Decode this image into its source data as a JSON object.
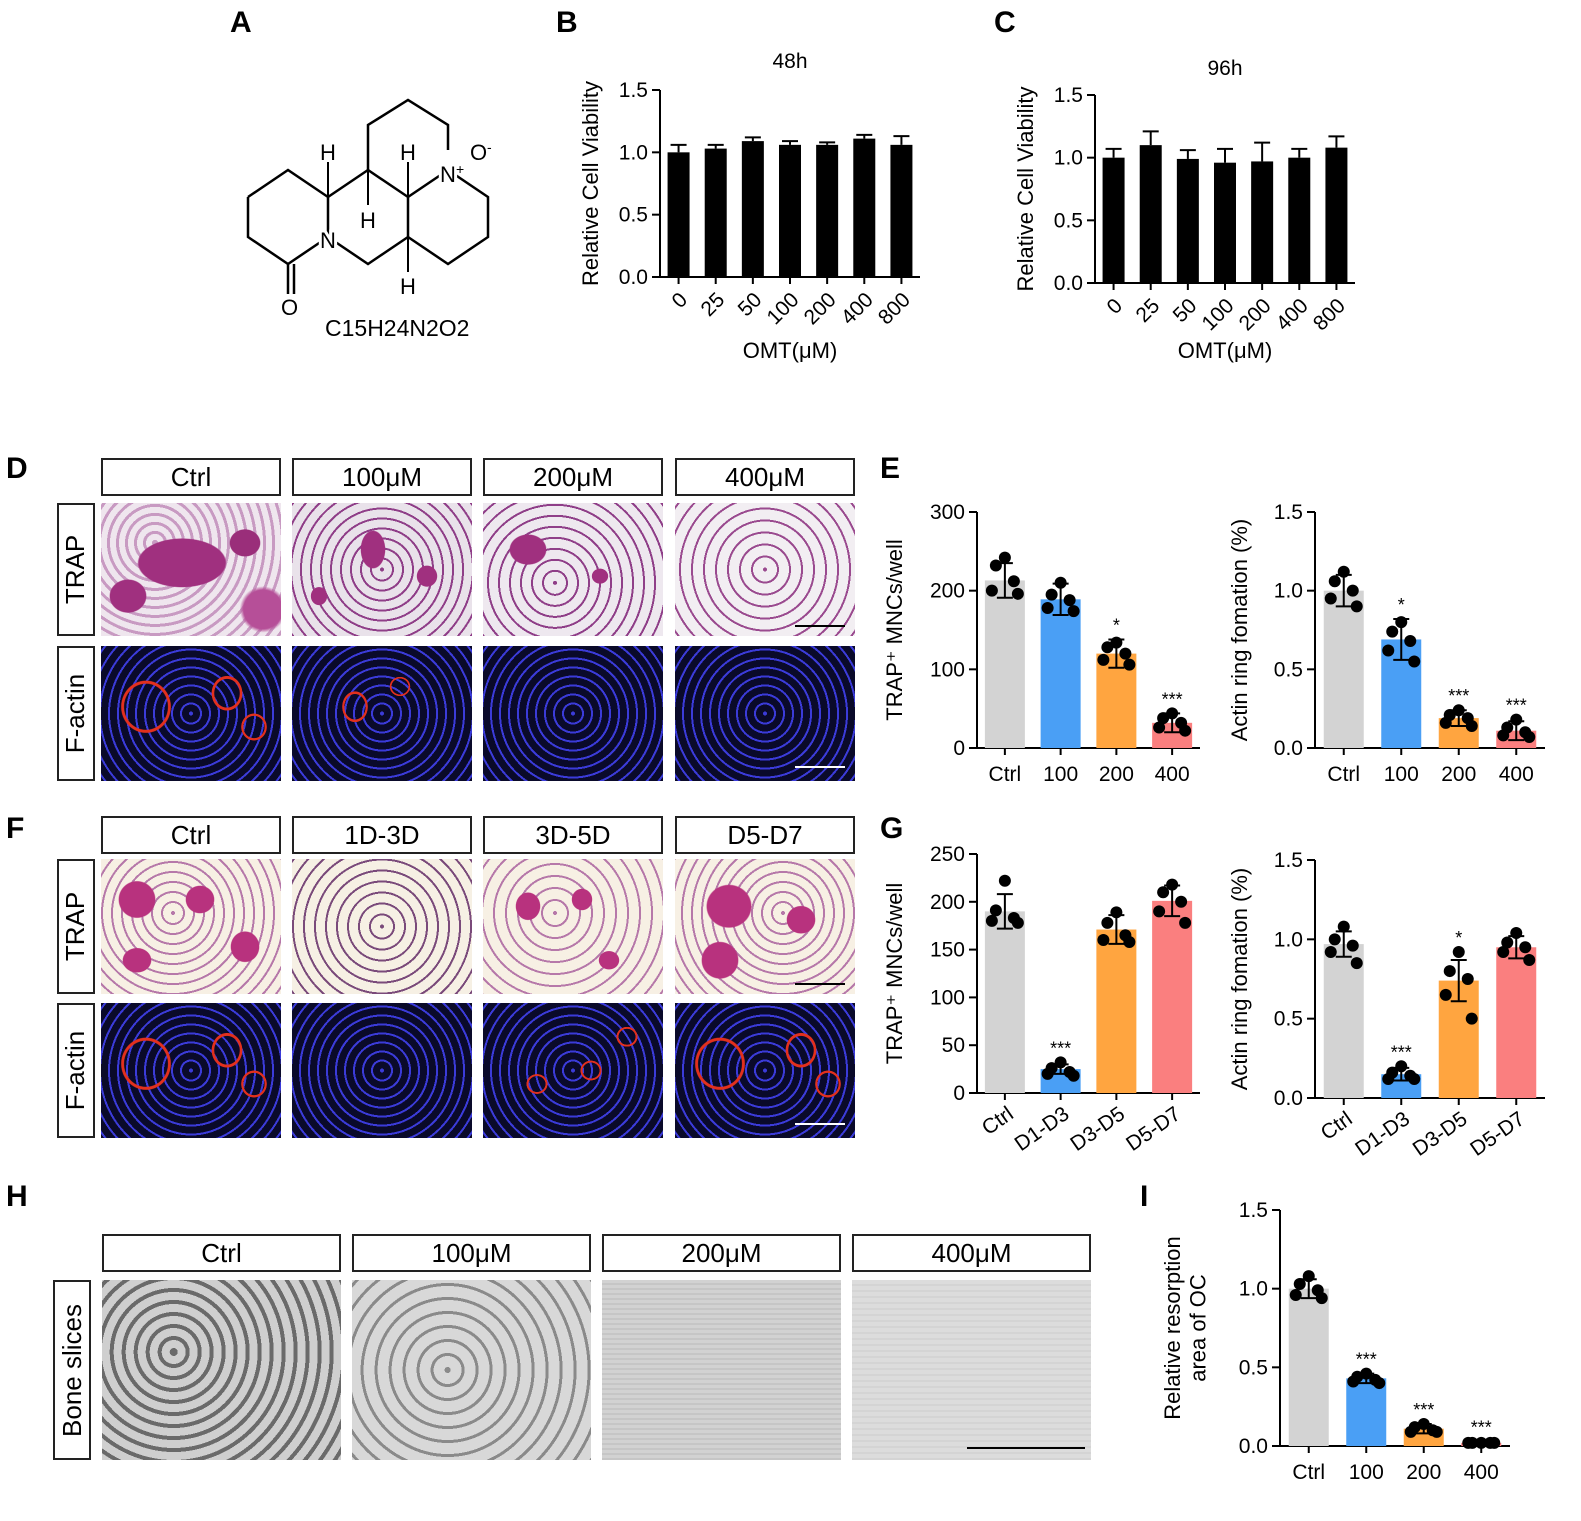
{
  "panel_letters": {
    "A": "A",
    "B": "B",
    "C": "C",
    "D": "D",
    "E": "E",
    "F": "F",
    "G": "G",
    "H": "H",
    "I": "I"
  },
  "structure": {
    "formula": "C15H24N2O2",
    "atoms": {
      "h1": "H",
      "h2": "H",
      "h3": "H",
      "h4": "H",
      "n1": "N",
      "n2": "N",
      "n_charge": "+",
      "o1": "O",
      "o2": "O",
      "o_charge": "-"
    }
  },
  "colors": {
    "black": "#000000",
    "grey": "#d3d3d3",
    "blue": "#4a9ff5",
    "orange": "#ffa540",
    "salmon": "#fa7f7f"
  },
  "panel_D": {
    "columns": [
      "Ctrl",
      "100μM",
      "200μM",
      "400μM"
    ],
    "rows": [
      "TRAP",
      "F-actin"
    ]
  },
  "panel_F": {
    "columns": [
      "Ctrl",
      "1D-3D",
      "3D-5D",
      "D5-D7"
    ],
    "rows": [
      "TRAP",
      "F-actin"
    ]
  },
  "panel_H": {
    "columns": [
      "Ctrl",
      "100μM",
      "200μM",
      "400μM"
    ],
    "rows": [
      "Bone slices"
    ]
  },
  "chart_data": [
    {
      "id": "B",
      "type": "bar",
      "title": "48h",
      "xlabel": "OMT(μM)",
      "ylabel": "Relative Cell Viability",
      "categories": [
        "0",
        "25",
        "50",
        "100",
        "200",
        "400",
        "800"
      ],
      "values": [
        1.0,
        1.03,
        1.09,
        1.06,
        1.06,
        1.11,
        1.06
      ],
      "errors": [
        0.06,
        0.03,
        0.03,
        0.03,
        0.02,
        0.03,
        0.07
      ],
      "ylim": [
        0,
        1.5
      ],
      "yticks": [
        "0.0",
        "0.5",
        "1.0",
        "1.5"
      ],
      "color": "#000000"
    },
    {
      "id": "C",
      "type": "bar",
      "title": "96h",
      "xlabel": "OMT(μM)",
      "ylabel": "Relative Cell Viability",
      "categories": [
        "0",
        "25",
        "50",
        "100",
        "200",
        "400",
        "800"
      ],
      "values": [
        1.0,
        1.1,
        0.99,
        0.96,
        0.97,
        1.0,
        1.08
      ],
      "errors": [
        0.07,
        0.11,
        0.07,
        0.11,
        0.15,
        0.07,
        0.09
      ],
      "ylim": [
        0,
        1.5
      ],
      "yticks": [
        "0.0",
        "0.5",
        "1.0",
        "1.5"
      ],
      "color": "#000000"
    },
    {
      "id": "E1",
      "type": "bar",
      "title": "",
      "xlabel": "",
      "ylabel": "TRAP⁺ MNCs/well",
      "categories": [
        "Ctrl",
        "100",
        "200",
        "400"
      ],
      "values": [
        213,
        189,
        120,
        32
      ],
      "errors": [
        22,
        20,
        18,
        12
      ],
      "points": [
        [
          242,
          232,
          212,
          200,
          196
        ],
        [
          210,
          195,
          188,
          178,
          174
        ],
        [
          134,
          128,
          120,
          112,
          106
        ],
        [
          44,
          38,
          32,
          26,
          22
        ]
      ],
      "significance": [
        "",
        "",
        "*",
        "***"
      ],
      "ylim": [
        0,
        300
      ],
      "yticks": [
        "0",
        "100",
        "200",
        "300"
      ],
      "colors": [
        "#d3d3d3",
        "#4a9ff5",
        "#ffa540",
        "#fa7f7f"
      ]
    },
    {
      "id": "E2",
      "type": "bar",
      "title": "",
      "xlabel": "",
      "ylabel": "Actin ring fomation (%)",
      "categories": [
        "Ctrl",
        "100",
        "200",
        "400"
      ],
      "values": [
        1.0,
        0.69,
        0.19,
        0.11
      ],
      "errors": [
        0.1,
        0.13,
        0.05,
        0.06
      ],
      "points": [
        [
          1.12,
          1.06,
          1.0,
          0.95,
          0.9
        ],
        [
          0.8,
          0.74,
          0.68,
          0.62,
          0.55
        ],
        [
          0.24,
          0.21,
          0.19,
          0.16,
          0.14
        ],
        [
          0.18,
          0.13,
          0.1,
          0.08,
          0.07
        ]
      ],
      "significance": [
        "",
        "*",
        "***",
        "***"
      ],
      "ylim": [
        0,
        1.5
      ],
      "yticks": [
        "0.0",
        "0.5",
        "1.0",
        "1.5"
      ],
      "colors": [
        "#d3d3d3",
        "#4a9ff5",
        "#ffa540",
        "#fa7f7f"
      ]
    },
    {
      "id": "G1",
      "type": "bar",
      "title": "",
      "xlabel": "",
      "ylabel": "TRAP⁺ MNCs/well",
      "categories": [
        "Ctrl",
        "D1-D3",
        "D3-D5",
        "D5-D7"
      ],
      "values": [
        190,
        25,
        171,
        201
      ],
      "errors": [
        18,
        5,
        15,
        16
      ],
      "points": [
        [
          222,
          191,
          183,
          180,
          178
        ],
        [
          32,
          26,
          22,
          20,
          18
        ],
        [
          189,
          178,
          165,
          160,
          158
        ],
        [
          218,
          210,
          200,
          190,
          178
        ]
      ],
      "significance": [
        "",
        "***",
        "",
        ""
      ],
      "ylim": [
        0,
        250
      ],
      "yticks": [
        "0",
        "50",
        "100",
        "150",
        "200",
        "250"
      ],
      "colors": [
        "#d3d3d3",
        "#4a9ff5",
        "#ffa540",
        "#fa7f7f"
      ]
    },
    {
      "id": "G2",
      "type": "bar",
      "title": "",
      "xlabel": "",
      "ylabel": "Actin ring fomation (%)",
      "categories": [
        "Ctrl",
        "D1-D3",
        "D3-D5",
        "D5-D7"
      ],
      "values": [
        0.97,
        0.15,
        0.74,
        0.95
      ],
      "errors": [
        0.08,
        0.04,
        0.13,
        0.07
      ],
      "points": [
        [
          1.08,
          1.0,
          0.96,
          0.92,
          0.85
        ],
        [
          0.2,
          0.16,
          0.14,
          0.12,
          0.12
        ],
        [
          0.92,
          0.8,
          0.75,
          0.65,
          0.5
        ],
        [
          1.04,
          0.98,
          0.95,
          0.92,
          0.87
        ]
      ],
      "significance": [
        "",
        "***",
        "*",
        ""
      ],
      "ylim": [
        0,
        1.5
      ],
      "yticks": [
        "0.0",
        "0.5",
        "1.0",
        "1.5"
      ],
      "colors": [
        "#d3d3d3",
        "#4a9ff5",
        "#ffa540",
        "#fa7f7f"
      ]
    },
    {
      "id": "I",
      "type": "bar",
      "title": "",
      "xlabel": "",
      "ylabel": "Relative resorption area of OC",
      "ylabel_lines": [
        "Relative resorption",
        "area of OC"
      ],
      "categories": [
        "Ctrl",
        "100",
        "200",
        "400"
      ],
      "values": [
        1.0,
        0.43,
        0.11,
        0.02
      ],
      "errors": [
        0.06,
        0.03,
        0.03,
        0.01
      ],
      "points": [
        [
          1.08,
          1.03,
          0.99,
          0.96,
          0.94
        ],
        [
          0.46,
          0.44,
          0.42,
          0.41,
          0.4
        ],
        [
          0.14,
          0.12,
          0.1,
          0.09,
          0.09
        ],
        [
          0.02,
          0.02,
          0.02,
          0.02,
          0.02
        ]
      ],
      "significance": [
        "",
        "***",
        "***",
        "***"
      ],
      "ylim": [
        0,
        1.5
      ],
      "yticks": [
        "0.0",
        "0.5",
        "1.0",
        "1.5"
      ],
      "colors": [
        "#d3d3d3",
        "#4a9ff5",
        "#ffa540",
        "#fa7f7f"
      ]
    }
  ]
}
